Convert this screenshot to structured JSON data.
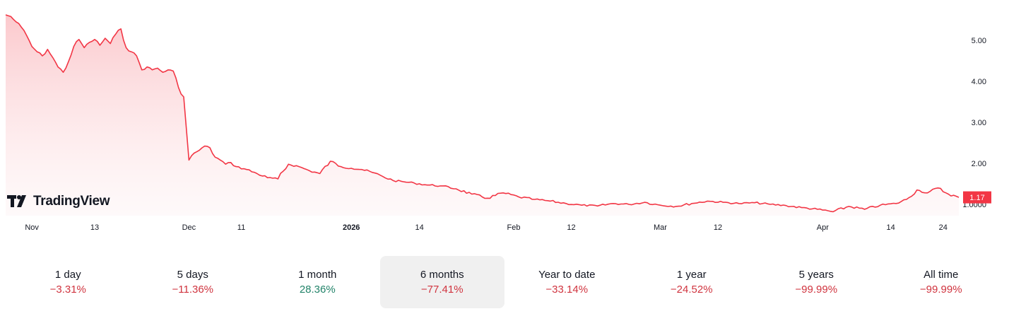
{
  "brand": {
    "name": "TradingView",
    "icon": "tradingview-logo-icon"
  },
  "colors": {
    "line": "#f23645",
    "fill_top": "#fbc6ca",
    "negative": "#d0343f",
    "positive": "#228369",
    "price_tag": "#f23645"
  },
  "chart_data": {
    "type": "area",
    "title": "",
    "xlabel": "",
    "ylabel": "",
    "ylim": [
      0.7,
      5.7
    ],
    "y_ticks": [
      "5.00",
      "4.00",
      "3.00",
      "2.00",
      "1.0000"
    ],
    "y_tick_values": [
      5,
      4,
      3,
      2,
      1
    ],
    "x_ticks": [
      {
        "label": "Nov",
        "date": "2025-11-01"
      },
      {
        "label": "13",
        "date": "2025-11-13"
      },
      {
        "label": "Dec",
        "date": "2025-12-01"
      },
      {
        "label": "11",
        "date": "2025-12-11"
      },
      {
        "label": "2026",
        "date": "2026-01-01",
        "bold": true
      },
      {
        "label": "14",
        "date": "2026-01-14"
      },
      {
        "label": "Feb",
        "date": "2026-02-01"
      },
      {
        "label": "12",
        "date": "2026-02-12"
      },
      {
        "label": "Mar",
        "date": "2026-03-01"
      },
      {
        "label": "12",
        "date": "2026-03-12"
      },
      {
        "label": "Apr",
        "date": "2026-04-01"
      },
      {
        "label": "14",
        "date": "2026-04-14"
      },
      {
        "label": "24",
        "date": "2026-04-24"
      }
    ],
    "last_price": "1.17",
    "series": [
      {
        "x": [
          "2025-10-27",
          "2025-10-28",
          "2025-10-29",
          "2025-10-30",
          "2025-10-31",
          "2025-11-01",
          "2025-11-02",
          "2025-11-03",
          "2025-11-04",
          "2025-11-05",
          "2025-11-06",
          "2025-11-07",
          "2025-11-08",
          "2025-11-09",
          "2025-11-10",
          "2025-11-11",
          "2025-11-12",
          "2025-11-13",
          "2025-11-14",
          "2025-11-15",
          "2025-11-16",
          "2025-11-17",
          "2025-11-18",
          "2025-11-19",
          "2025-11-20",
          "2025-11-21",
          "2025-11-22",
          "2025-11-23",
          "2025-11-24",
          "2025-11-25",
          "2025-11-26",
          "2025-11-27",
          "2025-11-28",
          "2025-11-29",
          "2025-11-30",
          "2025-12-01",
          "2025-12-02",
          "2025-12-03",
          "2025-12-04",
          "2025-12-05",
          "2025-12-06",
          "2025-12-07",
          "2025-12-08",
          "2025-12-09",
          "2025-12-10",
          "2025-12-12",
          "2025-12-14",
          "2025-12-16",
          "2025-12-18",
          "2025-12-20",
          "2025-12-22",
          "2025-12-24",
          "2025-12-26",
          "2025-12-28",
          "2025-12-30",
          "2026-01-01",
          "2026-01-03",
          "2026-01-05",
          "2026-01-07",
          "2026-01-09",
          "2026-01-11",
          "2026-01-13",
          "2026-01-15",
          "2026-01-18",
          "2026-01-21",
          "2026-01-24",
          "2026-01-27",
          "2026-01-30",
          "2026-02-02",
          "2026-02-05",
          "2026-02-08",
          "2026-02-11",
          "2026-02-14",
          "2026-02-17",
          "2026-02-20",
          "2026-02-23",
          "2026-02-26",
          "2026-03-01",
          "2026-03-04",
          "2026-03-07",
          "2026-03-10",
          "2026-03-13",
          "2026-03-16",
          "2026-03-19",
          "2026-03-22",
          "2026-03-25",
          "2026-03-28",
          "2026-03-31",
          "2026-04-03",
          "2026-04-06",
          "2026-04-09",
          "2026-04-12",
          "2026-04-15",
          "2026-04-17",
          "2026-04-19",
          "2026-04-21",
          "2026-04-23",
          "2026-04-25",
          "2026-04-27"
        ],
        "y": [
          5.62,
          5.58,
          5.45,
          5.32,
          5.12,
          4.85,
          4.72,
          4.62,
          4.78,
          4.58,
          4.35,
          4.22,
          4.48,
          4.85,
          5.02,
          4.82,
          4.95,
          5.02,
          4.88,
          5.05,
          4.92,
          5.15,
          5.28,
          4.82,
          4.72,
          4.62,
          4.28,
          4.35,
          4.28,
          4.32,
          4.22,
          4.28,
          4.25,
          3.85,
          3.62,
          2.08,
          2.25,
          2.32,
          2.42,
          2.38,
          2.15,
          2.08,
          1.98,
          2.02,
          1.92,
          1.85,
          1.75,
          1.65,
          1.62,
          1.98,
          1.92,
          1.82,
          1.75,
          2.05,
          1.92,
          1.88,
          1.85,
          1.78,
          1.68,
          1.58,
          1.55,
          1.52,
          1.48,
          1.45,
          1.38,
          1.25,
          1.15,
          1.28,
          1.18,
          1.12,
          1.08,
          1.02,
          0.98,
          0.96,
          1.02,
          1.0,
          1.05,
          0.98,
          0.95,
          1.02,
          1.08,
          1.05,
          1.02,
          1.04,
          1.0,
          0.97,
          0.92,
          0.88,
          0.82,
          0.95,
          0.88,
          0.98,
          1.02,
          1.12,
          1.35,
          1.28,
          1.4,
          1.25,
          1.17
        ]
      }
    ]
  },
  "ranges": [
    {
      "label": "1 day",
      "value": "−3.31%",
      "sign": "neg"
    },
    {
      "label": "5 days",
      "value": "−11.36%",
      "sign": "neg"
    },
    {
      "label": "1 month",
      "value": "28.36%",
      "sign": "pos"
    },
    {
      "label": "6 months",
      "value": "−77.41%",
      "sign": "neg",
      "active": true
    },
    {
      "label": "Year to date",
      "value": "−33.14%",
      "sign": "neg"
    },
    {
      "label": "1 year",
      "value": "−24.52%",
      "sign": "neg"
    },
    {
      "label": "5 years",
      "value": "−99.99%",
      "sign": "neg"
    },
    {
      "label": "All time",
      "value": "−99.99%",
      "sign": "neg"
    }
  ]
}
